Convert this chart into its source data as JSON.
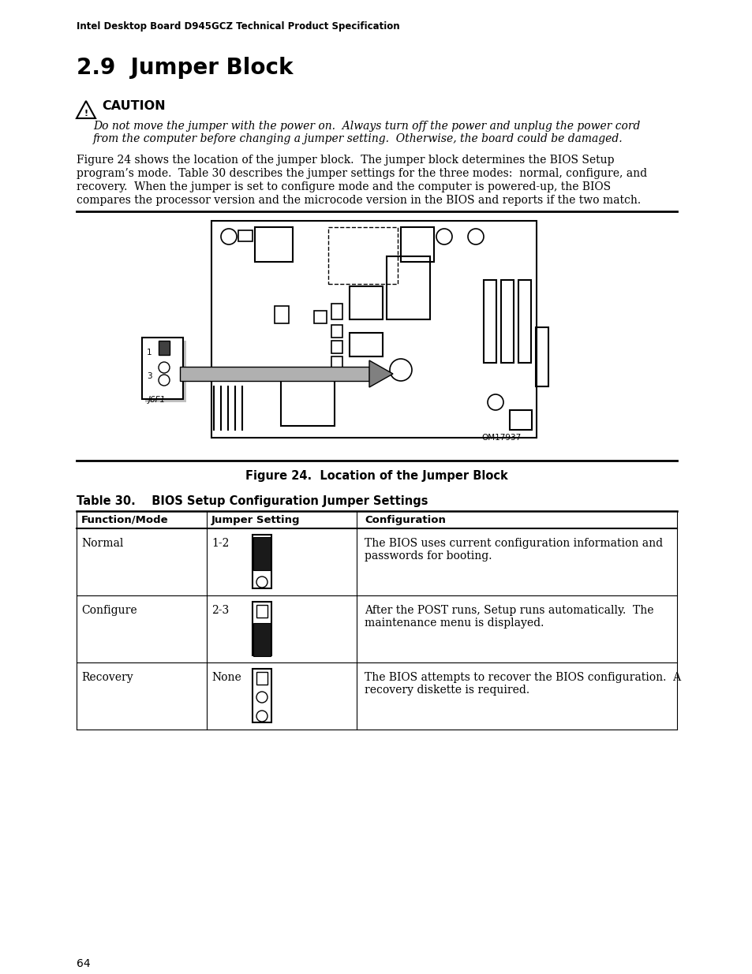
{
  "header_text": "Intel Desktop Board D945GCZ Technical Product Specification",
  "title": "2.9  Jumper Block",
  "caution_title": "CAUTION",
  "caution_italic_line1": "Do not move the jumper with the power on.  Always turn off the power and unplug the power cord",
  "caution_italic_line2": "from the computer before changing a jumper setting.  Otherwise, the board could be damaged.",
  "body_line1": "Figure 24 shows the location of the jumper block.  The jumper block determines the BIOS Setup",
  "body_line2": "program’s mode.  Table 30 describes the jumper settings for the three modes:  normal, configure, and",
  "body_line3": "recovery.  When the jumper is set to configure mode and the computer is powered-up, the BIOS",
  "body_line4": "compares the processor version and the microcode version in the BIOS and reports if the two match.",
  "figure_caption": "Figure 24.  Location of the Jumper Block",
  "table_title": "Table 30.    BIOS Setup Configuration Jumper Settings",
  "table_headers": [
    "Function/Mode",
    "Jumper Setting",
    "Configuration"
  ],
  "table_rows": [
    {
      "mode": "Normal",
      "jumper": "1-2",
      "jumper_type": "top_filled",
      "config_line1": "The BIOS uses current configuration information and",
      "config_line2": "passwords for booting."
    },
    {
      "mode": "Configure",
      "jumper": "2-3",
      "jumper_type": "bottom_filled",
      "config_line1": "After the POST runs, Setup runs automatically.  The",
      "config_line2": "maintenance menu is displayed."
    },
    {
      "mode": "Recovery",
      "jumper": "None",
      "jumper_type": "none_filled",
      "config_line1": "The BIOS attempts to recover the BIOS configuration.  A",
      "config_line2": "recovery diskette is required."
    }
  ],
  "page_number": "64",
  "bg_color": "#ffffff",
  "text_color": "#000000",
  "om_text": "OM17937"
}
